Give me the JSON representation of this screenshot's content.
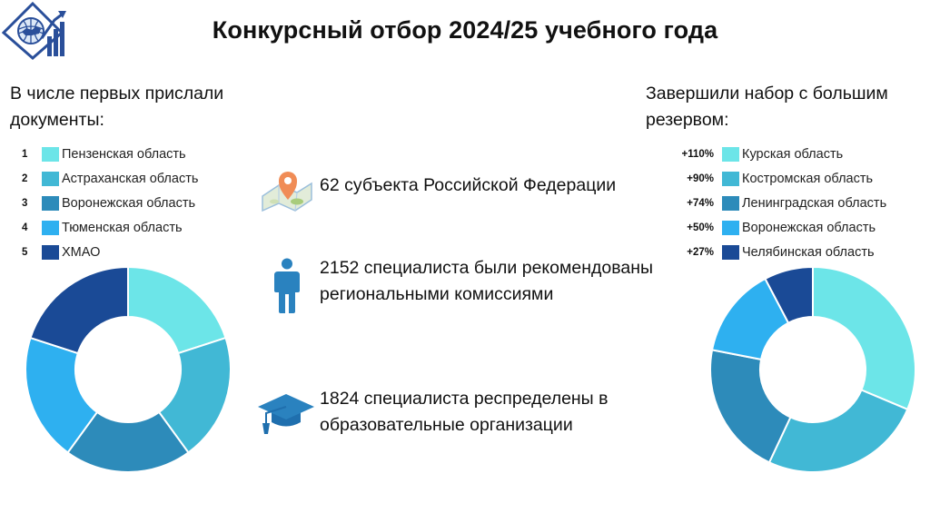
{
  "title": "Конкурсный отбор 2024/25 учебного года",
  "colors": {
    "c1": "#6ce5e8",
    "c2": "#41b8d5",
    "c3": "#2d8bba",
    "c4": "#2eb0f0",
    "c5": "#1a4a96"
  },
  "left": {
    "heading": "В числе первых прислали документы:",
    "items": [
      {
        "rank": "1",
        "label": "Пензенская область",
        "color": "#6ce5e8"
      },
      {
        "rank": "2",
        "label": "Астраханская область",
        "color": "#41b8d5"
      },
      {
        "rank": "3",
        "label": "Воронежская область",
        "color": "#2d8bba"
      },
      {
        "rank": "4",
        "label": "Тюменская область",
        "color": "#2eb0f0"
      },
      {
        "rank": "5",
        "label": "ХМАО",
        "color": "#1a4a96"
      }
    ],
    "donut_shares": [
      20,
      20,
      20,
      20,
      20
    ]
  },
  "right": {
    "heading": "Завершили набор с большим резервом:",
    "items": [
      {
        "value": "+110%",
        "label": "Курская область",
        "color": "#6ce5e8"
      },
      {
        "value": "+90%",
        "label": "Костромская область",
        "color": "#41b8d5"
      },
      {
        "value": "+74%",
        "label": "Ленинградская область",
        "color": "#2d8bba"
      },
      {
        "value": "+50%",
        "label": "Воронежская область",
        "color": "#2eb0f0"
      },
      {
        "value": "+27%",
        "label": "Челябинская область",
        "color": "#1a4a96"
      }
    ],
    "donut_shares": [
      110,
      90,
      74,
      50,
      27
    ]
  },
  "stats": [
    {
      "icon": "map-pin-icon",
      "text": "62 субъекта Российской Федерации"
    },
    {
      "icon": "person-icon",
      "text": "2152 специалиста были рекомендованы региональными комиссиями"
    },
    {
      "icon": "graduation-cap-icon",
      "text": "1824 специалиста респределены в образовательные организации"
    }
  ]
}
